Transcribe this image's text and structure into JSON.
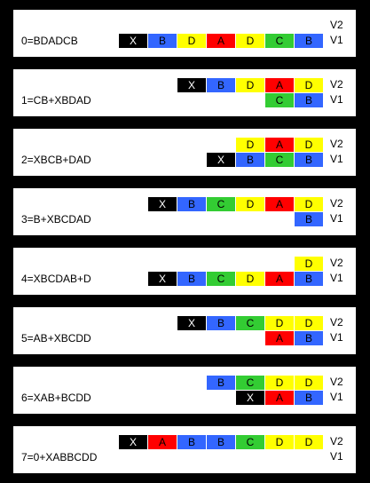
{
  "colors": {
    "X": "#000000",
    "A": "#ff0000",
    "B": "#3366ff",
    "C": "#33cc33",
    "D": "#ffff00"
  },
  "rows": [
    {
      "equation": "0=BDADCB",
      "v2_label": "V2",
      "v1_label": "V1",
      "v2": [],
      "v1": [
        "X",
        "B",
        "D",
        "A",
        "D",
        "C",
        "B"
      ]
    },
    {
      "equation": "1=CB+XBDAD",
      "v2_label": "V2",
      "v1_label": "V1",
      "v2": [
        "X",
        "B",
        "D",
        "A",
        "D"
      ],
      "v1": [
        "C",
        "B"
      ]
    },
    {
      "equation": "2=XBCB+DAD",
      "v2_label": "V2",
      "v1_label": "V1",
      "v2": [
        "D",
        "A",
        "D"
      ],
      "v1": [
        "X",
        "B",
        "C",
        "B"
      ]
    },
    {
      "equation": "3=B+XBCDAD",
      "v2_label": "V2",
      "v1_label": "V1",
      "v2": [
        "X",
        "B",
        "C",
        "D",
        "A",
        "D"
      ],
      "v1": [
        "B"
      ]
    },
    {
      "equation": "4=XBCDAB+D",
      "v2_label": "V2",
      "v1_label": "V1",
      "v2": [
        "D"
      ],
      "v1": [
        "X",
        "B",
        "C",
        "D",
        "A",
        "B"
      ]
    },
    {
      "equation": "5=AB+XBCDD",
      "v2_label": "V2",
      "v1_label": "V1",
      "v2": [
        "X",
        "B",
        "C",
        "D",
        "D"
      ],
      "v1": [
        "A",
        "B"
      ]
    },
    {
      "equation": "6=XAB+BCDD",
      "v2_label": "V2",
      "v1_label": "V1",
      "v2": [
        "B",
        "C",
        "D",
        "D"
      ],
      "v1": [
        "X",
        "A",
        "B"
      ]
    },
    {
      "equation": "7=0+XABBCDD",
      "v2_label": "V2",
      "v1_label": "V1",
      "v2": [
        "X",
        "A",
        "B",
        "B",
        "C",
        "D",
        "D"
      ],
      "v1": []
    }
  ]
}
